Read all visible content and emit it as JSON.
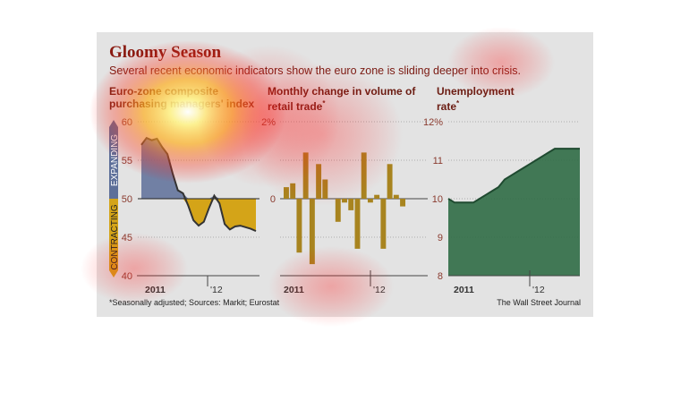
{
  "title": "Gloomy Season",
  "subtitle": "Several recent economic indicators show the euro zone is sliding deeper into crisis.",
  "footnote": "*Seasonally adjusted; Sources: Markit; Eurostat",
  "credit": "The Wall Street Journal",
  "panels": {
    "pmi": {
      "title_line1": "Euro-zone composite",
      "title_line2": "purchasing managers' index",
      "expanding": "EXPANDING",
      "contracting": "CONTRACTING",
      "year1": "2011",
      "year2": "'12"
    },
    "retail": {
      "title_line1": "Monthly change in volume of",
      "title_line2": "retail trade",
      "star": "*",
      "year1": "2011",
      "year2": "'12"
    },
    "unemployment": {
      "title_line1": "Unemployment",
      "title_line2": "rate",
      "star": "*",
      "year1": "2011",
      "year2": "'12"
    }
  },
  "colors": {
    "background": "#e3e3e3",
    "pmi_line": "#333333",
    "expanding_fill": "#5d6f99",
    "contracting_fill": "#d4a418",
    "retail_bar": "#a8841f",
    "unemployment_fill": "#2f6b45",
    "title": "#8a1b12"
  },
  "chart_data": [
    {
      "type": "line",
      "title": "Euro-zone composite purchasing managers' index",
      "x": [
        "2010-12",
        "2011-01",
        "2011-02",
        "2011-03",
        "2011-04",
        "2011-05",
        "2011-06",
        "2011-07",
        "2011-08",
        "2011-09",
        "2011-10",
        "2011-11",
        "2011-12",
        "2012-01",
        "2012-02",
        "2012-03",
        "2012-04",
        "2012-05",
        "2012-06",
        "2012-07",
        "2012-08",
        "2012-09",
        "2012-10"
      ],
      "values": [
        57.0,
        57.9,
        57.6,
        57.8,
        56.7,
        55.8,
        53.3,
        51.1,
        50.7,
        49.1,
        47.2,
        46.5,
        47.0,
        48.8,
        50.4,
        49.4,
        46.7,
        46.0,
        46.4,
        46.5,
        46.3,
        46.1,
        45.8
      ],
      "ylim": [
        40,
        60
      ],
      "yticks": [
        40,
        45,
        50,
        55,
        60
      ],
      "baseline": 50,
      "grid": true
    },
    {
      "type": "bar",
      "title": "Monthly change in volume of retail trade*",
      "x": [
        "2010-12",
        "2011-01",
        "2011-02",
        "2011-03",
        "2011-04",
        "2011-05",
        "2011-06",
        "2011-07",
        "2011-08",
        "2011-09",
        "2011-10",
        "2011-11",
        "2011-12",
        "2012-01",
        "2012-02",
        "2012-03",
        "2012-04",
        "2012-05",
        "2012-06",
        "2012-07",
        "2012-08",
        "2012-09"
      ],
      "values": [
        0.3,
        0.4,
        -1.4,
        1.2,
        -1.7,
        0.9,
        0.5,
        0.0,
        -0.6,
        -0.1,
        -0.3,
        -1.3,
        1.2,
        -0.1,
        0.1,
        -1.3,
        0.9,
        0.1,
        -0.2,
        0.0,
        0.0,
        0.0
      ],
      "ylim": [
        -2,
        2
      ],
      "yticks": [
        "0",
        "2%"
      ],
      "grid": true
    },
    {
      "type": "area",
      "title": "Unemployment rate*",
      "x": [
        "2010-12",
        "2011-01",
        "2011-02",
        "2011-03",
        "2011-04",
        "2011-05",
        "2011-06",
        "2011-07",
        "2011-08",
        "2011-09",
        "2011-10",
        "2011-11",
        "2011-12",
        "2012-01",
        "2012-02",
        "2012-03",
        "2012-04",
        "2012-05",
        "2012-06",
        "2012-07",
        "2012-08",
        "2012-09"
      ],
      "values": [
        10.0,
        9.9,
        9.9,
        9.9,
        9.9,
        10.0,
        10.1,
        10.2,
        10.3,
        10.5,
        10.6,
        10.7,
        10.8,
        10.9,
        11.0,
        11.1,
        11.2,
        11.3,
        11.3,
        11.3,
        11.3,
        11.3
      ],
      "ylim": [
        8,
        12
      ],
      "yticks": [
        "8",
        "9",
        "10",
        "11",
        "12%"
      ],
      "grid": true
    }
  ]
}
